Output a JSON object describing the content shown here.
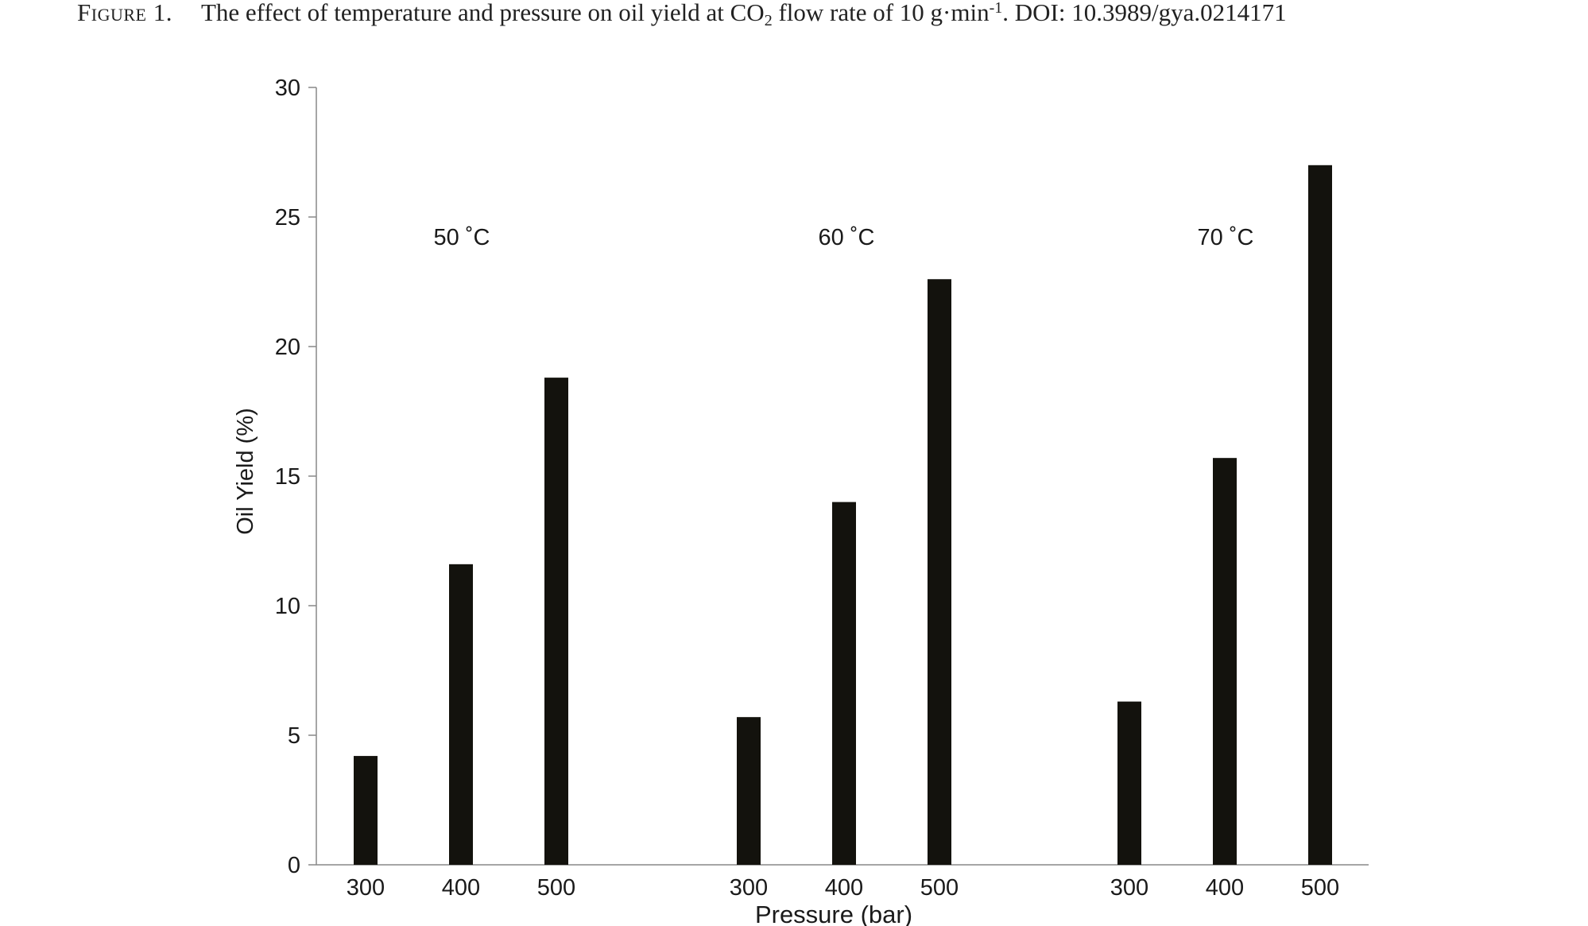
{
  "caption": {
    "label": "Figure 1.",
    "text_before_sub": "The effect of temperature and pressure on oil yield at CO",
    "sub": "2",
    "text_after_sub": " flow rate of 10 g·min",
    "sup": "-1",
    "text_end": ". DOI: 10.3989/gya.0214171"
  },
  "chart_data": {
    "type": "bar",
    "xlabel": "Pressure (bar)",
    "ylabel": "Oil Yield (%)",
    "ylim": [
      0,
      30
    ],
    "yticks": [
      0,
      5,
      10,
      15,
      20,
      25,
      30
    ],
    "grid": false,
    "legend": "none",
    "bar_color": "#13120d",
    "axis_color": "#888888",
    "groups": [
      {
        "label": "50 ˚C",
        "categories": [
          "300",
          "400",
          "500"
        ],
        "values": [
          4.2,
          11.6,
          18.8
        ]
      },
      {
        "label": "60 ˚C",
        "categories": [
          "300",
          "400",
          "500"
        ],
        "values": [
          5.7,
          14.0,
          22.6
        ]
      },
      {
        "label": "70 ˚C",
        "categories": [
          "300",
          "400",
          "500"
        ],
        "values": [
          6.3,
          15.7,
          27.0
        ]
      }
    ]
  }
}
